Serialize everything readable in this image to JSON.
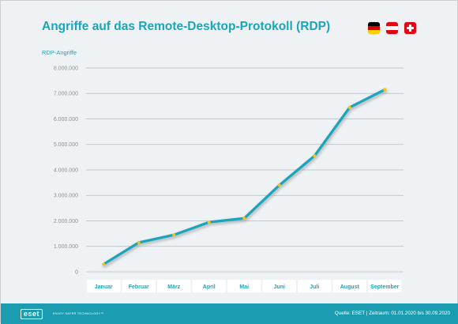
{
  "header": {
    "title": "Angriffe auf das Remote-Desktop-Protokoll (RDP)",
    "flags": [
      "flag-germany-icon",
      "flag-austria-icon",
      "flag-switzerland-icon"
    ]
  },
  "footer": {
    "logo_text": "eset",
    "tagline": "ENJOY SAFER TECHNOLOGY™",
    "source": "Quelle: ESET  |  Zeitraum: 01.01.2020 bis 30.09.2020"
  },
  "colors": {
    "accent": "#1aa6ba",
    "line": "#1aa6ba",
    "marker": "#f2c21b",
    "footer": "#1c9cb0"
  },
  "chart_data": {
    "type": "line",
    "title": "Angriffe auf das Remote-Desktop-Protokoll (RDP)",
    "ylabel": "RDP-Angriffe",
    "xlabel": "",
    "categories": [
      "Januar",
      "Februar",
      "März",
      "April",
      "Mai",
      "Juni",
      "Juli",
      "August",
      "September"
    ],
    "series": [
      {
        "values": [
          300000,
          1150000,
          1450000,
          1950000,
          2100000,
          3400000,
          4550000,
          6450000,
          7150000
        ]
      }
    ],
    "ylim": [
      0,
      8000000
    ],
    "yticks": [
      0,
      1000000,
      2000000,
      3000000,
      4000000,
      5000000,
      6000000,
      7000000,
      8000000
    ],
    "ytick_labels": [
      "0",
      "1.000.000",
      "2.000.000",
      "3.000.000",
      "4.000.000",
      "5.000.000",
      "6.000.000",
      "7.000.000",
      "8.000.000"
    ],
    "grid": true,
    "legend": "none"
  }
}
